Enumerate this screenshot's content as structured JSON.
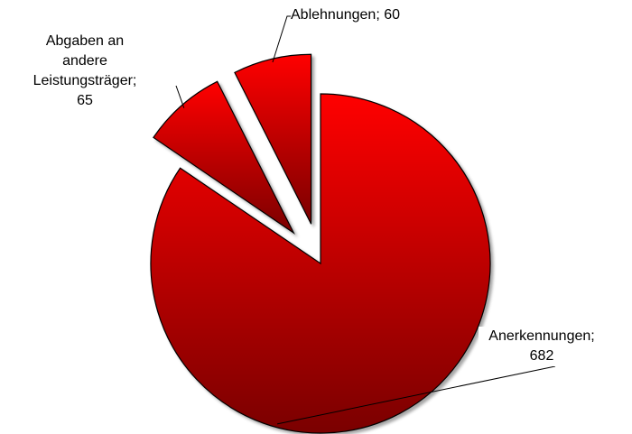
{
  "chart_data": {
    "type": "pie",
    "values": [
      682,
      65,
      60
    ],
    "value_labels": [
      "Anerkennungen; 682",
      "Abgaben an andere Leistungsträger; 65",
      "Ablehnungen; 60"
    ],
    "exploded": [
      false,
      true,
      true
    ],
    "color": "#ff0000"
  }
}
